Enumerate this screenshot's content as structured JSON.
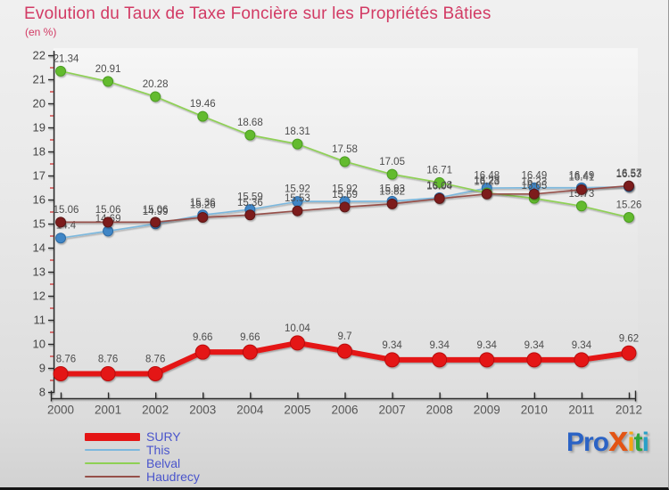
{
  "header": {
    "title": "Evolution du Taux de Taxe Foncière sur les Propriétés Bâties",
    "subtitle": "(en %)",
    "title_color": "#d23a64"
  },
  "chart_data": {
    "type": "line",
    "x": [
      2000,
      2001,
      2002,
      2003,
      2004,
      2005,
      2006,
      2007,
      2008,
      2009,
      2010,
      2011,
      2012
    ],
    "ylim": [
      8,
      22
    ],
    "ytick_step": 1,
    "grid": false,
    "legend_position": "bottom-left",
    "title": "Evolution du Taux de Taxe Foncière sur les Propriétés Bâties",
    "ylabel": "en %",
    "xlabel": "",
    "y_axis": {
      "tick_color": "#2a2a2a",
      "minor_tick_color": "#cc3333",
      "label_color": "#444444"
    },
    "x_axis": {
      "label_color": "#555555"
    },
    "value_label_color": "#4d4d4d",
    "series": [
      {
        "name": "SURY",
        "color": "#e41414",
        "marker_fill": "#e41414",
        "marker_stroke": "#b80f0f",
        "line_width": 6,
        "marker_radius": 8,
        "swatch": "thick",
        "values": [
          8.76,
          8.76,
          8.76,
          9.66,
          9.66,
          10.04,
          9.7,
          9.34,
          9.34,
          9.34,
          9.34,
          9.34,
          9.62
        ]
      },
      {
        "name": "This",
        "color": "#7db8dd",
        "marker_fill": "#3f86c6",
        "marker_stroke": "#2e6ba3",
        "line_width": 1.7,
        "marker_radius": 5.5,
        "swatch": "thin",
        "values": [
          14.4,
          14.69,
          14.99,
          15.36,
          15.59,
          15.92,
          15.92,
          15.93,
          16.08,
          16.48,
          16.49,
          16.49,
          16.53
        ]
      },
      {
        "name": "Belval",
        "color": "#8ed054",
        "marker_fill": "#63bb2f",
        "marker_stroke": "#4c9c22",
        "line_width": 1.7,
        "marker_radius": 5.5,
        "swatch": "thin",
        "values": [
          21.34,
          20.91,
          20.28,
          19.46,
          18.68,
          18.31,
          17.58,
          17.05,
          16.71,
          16.28,
          16.05,
          15.73,
          15.26
        ]
      },
      {
        "name": "Haudrecy",
        "color": "#96504a",
        "marker_fill": "#7d1f1f",
        "marker_stroke": "#5c1616",
        "line_width": 1.7,
        "marker_radius": 5.5,
        "swatch": "thin",
        "values": [
          15.06,
          15.06,
          15.06,
          15.26,
          15.36,
          15.53,
          15.69,
          15.82,
          16.04,
          16.23,
          16.23,
          16.41,
          16.57
        ]
      }
    ]
  },
  "legend": {
    "text_color": "#4a55cc",
    "items": [
      "SURY",
      "This",
      "Belval",
      "Haudrecy"
    ]
  },
  "logo": {
    "name": "Proxiti",
    "letters": [
      {
        "ch": "P",
        "color": "#2b63c5",
        "big": false
      },
      {
        "ch": "r",
        "color": "#2b63c5",
        "big": false
      },
      {
        "ch": "o",
        "color": "#2b63c5",
        "big": false
      },
      {
        "ch": "x",
        "color": "#e35414",
        "big": true
      },
      {
        "ch": "i",
        "color": "#f7a514",
        "big": false
      },
      {
        "ch": "t",
        "color": "#2fa53c",
        "big": false
      },
      {
        "ch": "i",
        "color": "#28a0c8",
        "big": false
      }
    ]
  }
}
